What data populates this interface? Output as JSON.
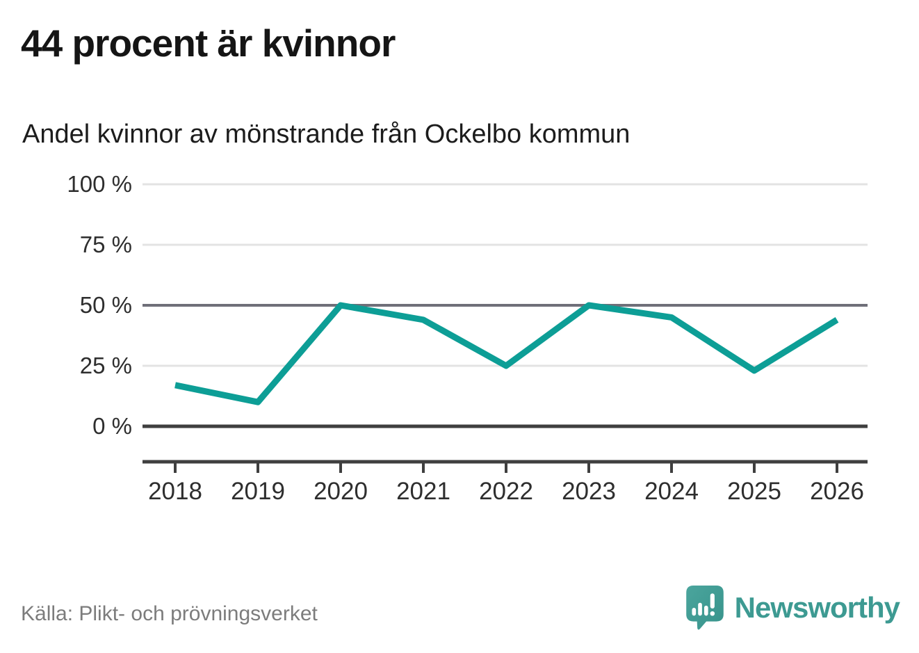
{
  "header": {
    "title": "44 procent är kvinnor",
    "subtitle": "Andel kvinnor av mönstrande från Ockelbo kommun"
  },
  "chart_data": {
    "type": "line",
    "title": "44 procent är kvinnor",
    "subtitle": "Andel kvinnor av mönstrande från Ockelbo kommun",
    "x": [
      2018,
      2019,
      2020,
      2021,
      2022,
      2023,
      2024,
      2025,
      2026
    ],
    "series": [
      {
        "name": "Andel kvinnor av mönstrande",
        "values": [
          17,
          10,
          50,
          44,
          25,
          50,
          45,
          23,
          44
        ]
      }
    ],
    "unit": "%",
    "ylim": [
      0,
      100
    ],
    "yticks": [
      0,
      25,
      50,
      75,
      100
    ],
    "ytick_labels": [
      "0 %",
      "25 %",
      "50 %",
      "75 %",
      "100 %"
    ],
    "grid": true,
    "legend": "none",
    "line_color": "#0d9e96",
    "emphasized_gridline": 50
  },
  "colors": {
    "accent_teal": "#0d9e96",
    "grid_light": "#e3e3e3",
    "grid_mid": "#6f6f79",
    "axis_dark": "#3f3f3f",
    "label_gray": "#2e2e2e",
    "source_gray": "#7c7c7c",
    "logo_teal": "#44a09a",
    "logo_teal_dark": "#37938b",
    "brand_text_teal": "#3d9a92"
  },
  "footer": {
    "source": "Källa: Plikt- och prövningsverket",
    "brand": "Newsworthy"
  }
}
